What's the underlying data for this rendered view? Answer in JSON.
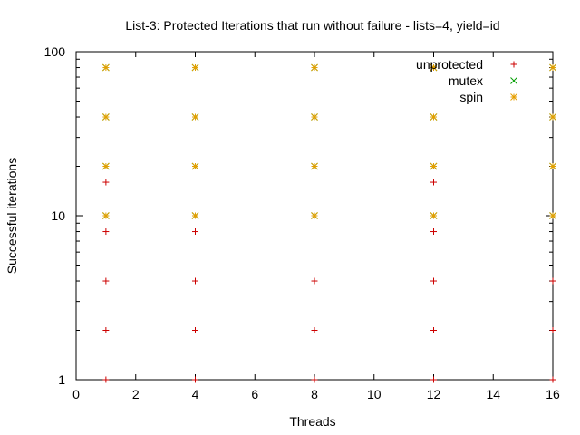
{
  "chart_data": {
    "type": "scatter",
    "title": "List-3: Protected Iterations that run without failure - lists=4, yield=id",
    "xlabel": "Threads",
    "ylabel": "Successful iterations",
    "xlim": [
      0,
      16
    ],
    "ylim": [
      1,
      100
    ],
    "yscale": "log",
    "xticks": [
      0,
      2,
      4,
      6,
      8,
      10,
      12,
      14,
      16
    ],
    "yticks": [
      1,
      10,
      100
    ],
    "grid": false,
    "legend_position": "top-right",
    "series": [
      {
        "name": "unprotected",
        "color": "#cc0000",
        "marker": "plus",
        "points": [
          [
            1,
            1
          ],
          [
            1,
            2
          ],
          [
            1,
            4
          ],
          [
            1,
            8
          ],
          [
            1,
            16
          ],
          [
            4,
            1
          ],
          [
            4,
            2
          ],
          [
            4,
            4
          ],
          [
            4,
            8
          ],
          [
            8,
            1
          ],
          [
            8,
            2
          ],
          [
            8,
            4
          ],
          [
            12,
            1
          ],
          [
            12,
            2
          ],
          [
            12,
            4
          ],
          [
            12,
            8
          ],
          [
            12,
            16
          ],
          [
            16,
            1
          ],
          [
            16,
            2
          ],
          [
            16,
            4
          ]
        ]
      },
      {
        "name": "mutex",
        "color": "#009e00",
        "marker": "cross",
        "points": [
          [
            1,
            10
          ],
          [
            1,
            20
          ],
          [
            1,
            40
          ],
          [
            1,
            80
          ],
          [
            4,
            10
          ],
          [
            4,
            20
          ],
          [
            4,
            40
          ],
          [
            4,
            80
          ],
          [
            8,
            10
          ],
          [
            8,
            20
          ],
          [
            8,
            40
          ],
          [
            8,
            80
          ],
          [
            12,
            10
          ],
          [
            12,
            20
          ],
          [
            12,
            40
          ],
          [
            12,
            80
          ],
          [
            16,
            10
          ],
          [
            16,
            20
          ],
          [
            16,
            40
          ],
          [
            16,
            80
          ]
        ]
      },
      {
        "name": "spin",
        "color": "#e69f00",
        "marker": "star",
        "points": [
          [
            1,
            10
          ],
          [
            1,
            20
          ],
          [
            1,
            40
          ],
          [
            1,
            80
          ],
          [
            4,
            10
          ],
          [
            4,
            20
          ],
          [
            4,
            40
          ],
          [
            4,
            80
          ],
          [
            8,
            10
          ],
          [
            8,
            20
          ],
          [
            8,
            40
          ],
          [
            8,
            80
          ],
          [
            12,
            10
          ],
          [
            12,
            20
          ],
          [
            12,
            40
          ],
          [
            12,
            80
          ],
          [
            16,
            10
          ],
          [
            16,
            20
          ],
          [
            16,
            40
          ],
          [
            16,
            80
          ]
        ]
      }
    ]
  }
}
